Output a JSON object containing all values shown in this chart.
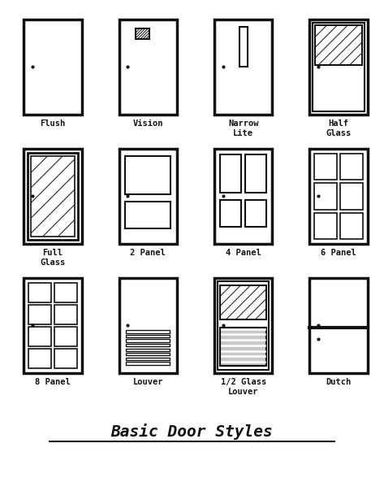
{
  "title": "Basic Door Styles",
  "background_color": "#ffffff",
  "door_color": "#111111",
  "doors": [
    {
      "name": "Flush",
      "col": 0,
      "row": 0,
      "type": "flush"
    },
    {
      "name": "Vision",
      "col": 1,
      "row": 0,
      "type": "vision"
    },
    {
      "name": "Narrow\nLite",
      "col": 2,
      "row": 0,
      "type": "narrow_lite"
    },
    {
      "name": "Half\nGlass",
      "col": 3,
      "row": 0,
      "type": "half_glass"
    },
    {
      "name": "Full\nGlass",
      "col": 0,
      "row": 1,
      "type": "full_glass"
    },
    {
      "name": "2 Panel",
      "col": 1,
      "row": 1,
      "type": "two_panel"
    },
    {
      "name": "4 Panel",
      "col": 2,
      "row": 1,
      "type": "four_panel"
    },
    {
      "name": "6 Panel",
      "col": 3,
      "row": 1,
      "type": "six_panel"
    },
    {
      "name": "8 Panel",
      "col": 0,
      "row": 2,
      "type": "eight_panel"
    },
    {
      "name": "Louver",
      "col": 1,
      "row": 2,
      "type": "louver"
    },
    {
      "name": "1/2 Glass\nLouver",
      "col": 2,
      "row": 2,
      "type": "half_glass_louver"
    },
    {
      "name": "Dutch",
      "col": 3,
      "row": 2,
      "type": "dutch"
    }
  ]
}
